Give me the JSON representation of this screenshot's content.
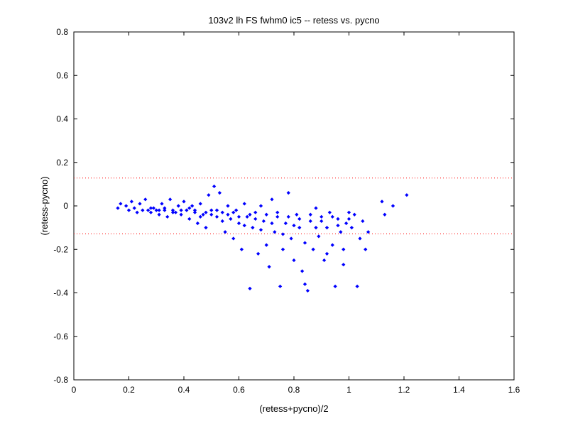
{
  "chart_data": {
    "type": "scatter",
    "title": "103v2 lh FS fwhm0 ic5 -- retess vs. pycno",
    "xlabel": "(retess+pycno)/2",
    "ylabel": "(retess-pycno)",
    "xlim": [
      0,
      1.6
    ],
    "ylim": [
      -0.8,
      0.8
    ],
    "xticks": [
      "0",
      "0.2",
      "0.4",
      "0.6",
      "0.8",
      "1",
      "1.2",
      "1.4",
      "1.6"
    ],
    "yticks": [
      "0.8",
      "0.6",
      "0.4",
      "0.2",
      "0",
      "-0.2",
      "-0.4",
      "-0.6",
      "-0.8"
    ],
    "grid": false,
    "reference_lines": [
      0.128,
      -0.128
    ],
    "reference_line_color": "#ff0000",
    "marker_color": "#0000ff",
    "series": [
      {
        "values": [
          [
            0.16,
            -0.01
          ],
          [
            0.17,
            0.01
          ],
          [
            0.19,
            0.0
          ],
          [
            0.2,
            -0.02
          ],
          [
            0.21,
            0.02
          ],
          [
            0.22,
            -0.01
          ],
          [
            0.23,
            -0.03
          ],
          [
            0.24,
            0.01
          ],
          [
            0.25,
            -0.02
          ],
          [
            0.26,
            0.03
          ],
          [
            0.27,
            -0.02
          ],
          [
            0.28,
            -0.03
          ],
          [
            0.29,
            -0.01
          ],
          [
            0.3,
            -0.02
          ],
          [
            0.31,
            -0.04
          ],
          [
            0.32,
            0.01
          ],
          [
            0.33,
            -0.02
          ],
          [
            0.34,
            -0.05
          ],
          [
            0.35,
            0.03
          ],
          [
            0.36,
            -0.02
          ],
          [
            0.37,
            -0.03
          ],
          [
            0.38,
            0.0
          ],
          [
            0.39,
            -0.04
          ],
          [
            0.4,
            0.02
          ],
          [
            0.41,
            -0.02
          ],
          [
            0.42,
            -0.06
          ],
          [
            0.43,
            0.0
          ],
          [
            0.44,
            -0.03
          ],
          [
            0.45,
            -0.08
          ],
          [
            0.46,
            0.01
          ],
          [
            0.47,
            -0.04
          ],
          [
            0.48,
            -0.1
          ],
          [
            0.49,
            0.05
          ],
          [
            0.5,
            -0.02
          ],
          [
            0.51,
            0.09
          ],
          [
            0.52,
            -0.05
          ],
          [
            0.53,
            0.06
          ],
          [
            0.54,
            -0.03
          ],
          [
            0.55,
            -0.12
          ],
          [
            0.56,
            0.0
          ],
          [
            0.57,
            -0.06
          ],
          [
            0.58,
            -0.15
          ],
          [
            0.59,
            -0.02
          ],
          [
            0.6,
            -0.08
          ],
          [
            0.61,
            -0.2
          ],
          [
            0.62,
            0.01
          ],
          [
            0.63,
            -0.05
          ],
          [
            0.64,
            -0.38
          ],
          [
            0.65,
            -0.1
          ],
          [
            0.66,
            -0.03
          ],
          [
            0.67,
            -0.22
          ],
          [
            0.68,
            0.0
          ],
          [
            0.69,
            -0.07
          ],
          [
            0.7,
            -0.18
          ],
          [
            0.71,
            -0.28
          ],
          [
            0.72,
            0.03
          ],
          [
            0.73,
            -0.12
          ],
          [
            0.74,
            -0.05
          ],
          [
            0.75,
            -0.37
          ],
          [
            0.76,
            -0.2
          ],
          [
            0.77,
            -0.08
          ],
          [
            0.78,
            0.06
          ],
          [
            0.79,
            -0.15
          ],
          [
            0.8,
            -0.25
          ],
          [
            0.81,
            -0.04
          ],
          [
            0.82,
            -0.1
          ],
          [
            0.83,
            -0.3
          ],
          [
            0.84,
            -0.36
          ],
          [
            0.85,
            -0.39
          ],
          [
            0.86,
            -0.07
          ],
          [
            0.87,
            -0.2
          ],
          [
            0.88,
            -0.01
          ],
          [
            0.89,
            -0.14
          ],
          [
            0.9,
            -0.05
          ],
          [
            0.91,
            -0.25
          ],
          [
            0.92,
            -0.1
          ],
          [
            0.93,
            -0.03
          ],
          [
            0.94,
            -0.18
          ],
          [
            0.95,
            -0.37
          ],
          [
            0.96,
            -0.06
          ],
          [
            0.97,
            -0.12
          ],
          [
            0.98,
            -0.2
          ],
          [
            0.99,
            -0.08
          ],
          [
            1.0,
            -0.03
          ],
          [
            1.01,
            -0.1
          ],
          [
            1.02,
            -0.04
          ],
          [
            1.03,
            -0.37
          ],
          [
            1.04,
            -0.15
          ],
          [
            1.05,
            -0.07
          ],
          [
            1.06,
            -0.2
          ],
          [
            1.07,
            -0.12
          ],
          [
            1.12,
            0.02
          ],
          [
            1.13,
            -0.04
          ],
          [
            1.16,
            0.0
          ],
          [
            1.21,
            0.05
          ],
          [
            0.28,
            -0.01
          ],
          [
            0.31,
            -0.02
          ],
          [
            0.33,
            -0.01
          ],
          [
            0.36,
            -0.03
          ],
          [
            0.39,
            -0.02
          ],
          [
            0.42,
            -0.01
          ],
          [
            0.44,
            -0.02
          ],
          [
            0.46,
            -0.05
          ],
          [
            0.48,
            -0.03
          ],
          [
            0.5,
            -0.04
          ],
          [
            0.52,
            -0.02
          ],
          [
            0.54,
            -0.07
          ],
          [
            0.56,
            -0.04
          ],
          [
            0.58,
            -0.03
          ],
          [
            0.6,
            -0.05
          ],
          [
            0.62,
            -0.09
          ],
          [
            0.64,
            -0.04
          ],
          [
            0.66,
            -0.06
          ],
          [
            0.68,
            -0.11
          ],
          [
            0.7,
            -0.04
          ],
          [
            0.72,
            -0.08
          ],
          [
            0.74,
            -0.03
          ],
          [
            0.76,
            -0.13
          ],
          [
            0.78,
            -0.05
          ],
          [
            0.8,
            -0.09
          ],
          [
            0.82,
            -0.06
          ],
          [
            0.84,
            -0.17
          ],
          [
            0.86,
            -0.04
          ],
          [
            0.88,
            -0.1
          ],
          [
            0.9,
            -0.07
          ],
          [
            0.92,
            -0.22
          ],
          [
            0.94,
            -0.05
          ],
          [
            0.96,
            -0.09
          ],
          [
            0.98,
            -0.27
          ],
          [
            1.0,
            -0.06
          ]
        ]
      }
    ]
  }
}
